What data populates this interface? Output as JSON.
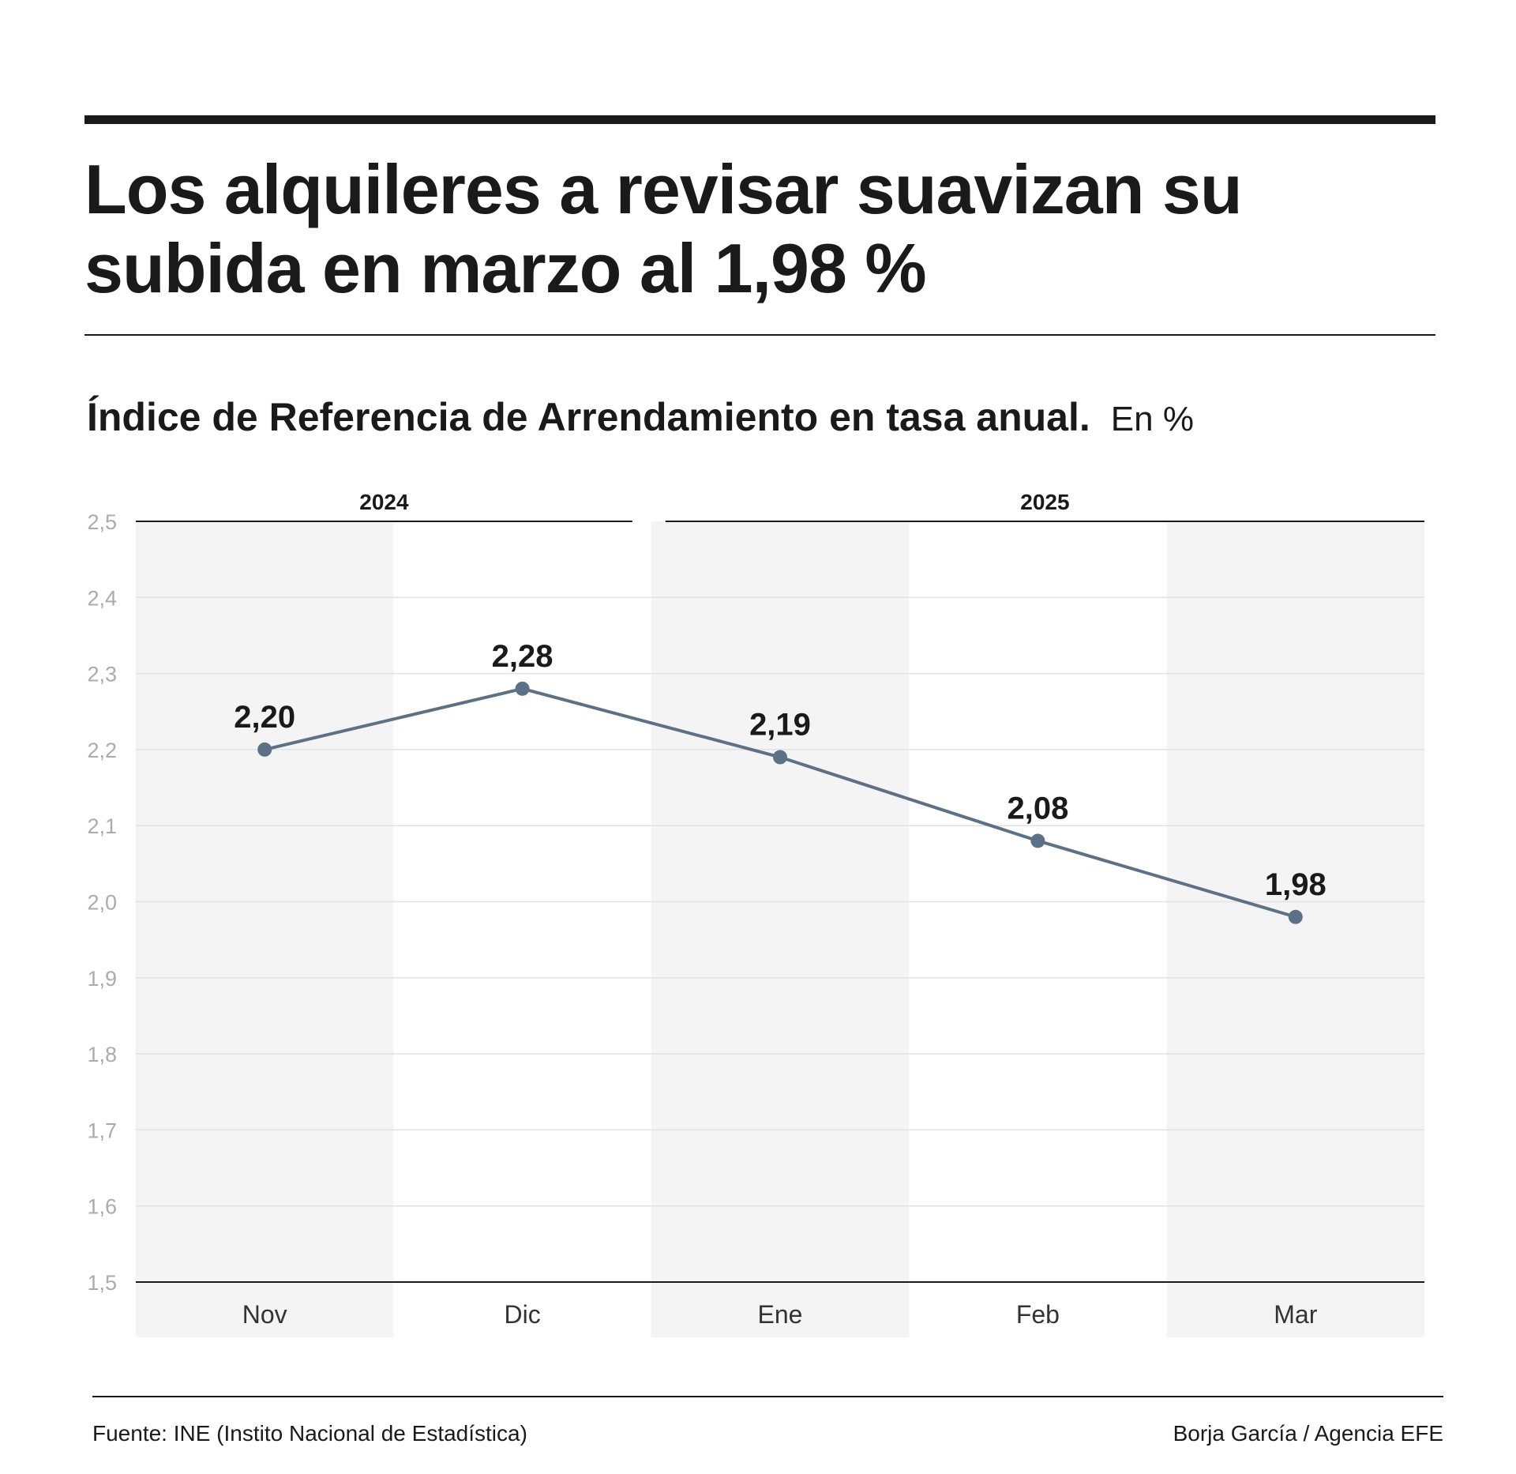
{
  "header": {
    "title": "Los alquileres a revisar suavizan su subida en marzo al 1,98 %",
    "subtitle": "Índice de Referencia de Arrendamiento en tasa anual.",
    "unit": "En %"
  },
  "chart_data": {
    "type": "line",
    "categories": [
      "Nov",
      "Dic",
      "Ene",
      "Feb",
      "Mar"
    ],
    "values": [
      2.2,
      2.28,
      2.19,
      2.08,
      1.98
    ],
    "value_labels": [
      "2,20",
      "2,28",
      "2,19",
      "2,08",
      "1,98"
    ],
    "year_groups": [
      {
        "label": "2024",
        "categories": [
          "Nov",
          "Dic"
        ]
      },
      {
        "label": "2025",
        "categories": [
          "Ene",
          "Feb",
          "Mar"
        ]
      }
    ],
    "ylim": [
      1.5,
      2.5
    ],
    "yticks": [
      1.5,
      1.6,
      1.7,
      1.8,
      1.9,
      2.0,
      2.1,
      2.2,
      2.3,
      2.4,
      2.5
    ],
    "ytick_labels": [
      "1,5",
      "1,6",
      "1,7",
      "1,8",
      "1,9",
      "2,0",
      "2,1",
      "2,2",
      "2,3",
      "2,4",
      "2,5"
    ],
    "grid": true,
    "line_color": "#5b7186",
    "band_color": "#f4f4f4"
  },
  "footer": {
    "source": "Fuente: INE (Instito Nacional de Estadística)",
    "credit": "Borja García / Agencia EFE"
  }
}
